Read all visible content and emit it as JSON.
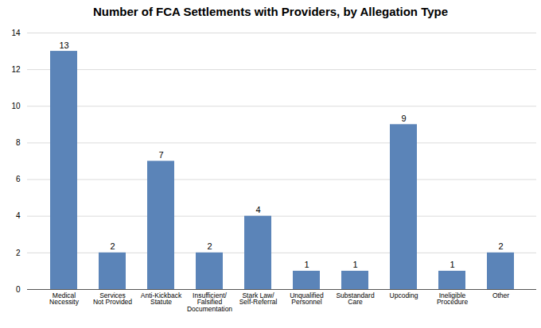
{
  "chart_data": {
    "type": "bar",
    "title": "Number of FCA Settlements with Providers, by Allegation Type",
    "categories": [
      "Medical\nNecessity",
      "Services\nNot Provided",
      "Anti-Kickback\nStatute",
      "Insufficient/\nFalsified\nDocumentation",
      "Stark Law/\nSelf-Referral",
      "Unqualified\nPersonnel",
      "Substandard\nCare",
      "Upcoding",
      "Ineligible\nProcedure",
      "Other"
    ],
    "values": [
      13,
      2,
      7,
      2,
      4,
      1,
      1,
      9,
      1,
      2
    ],
    "color": "#5b84b8",
    "ylim": [
      0,
      14
    ],
    "yticks": [
      0,
      2,
      4,
      6,
      8,
      10,
      12,
      14
    ],
    "grid": true,
    "data_labels": true
  }
}
